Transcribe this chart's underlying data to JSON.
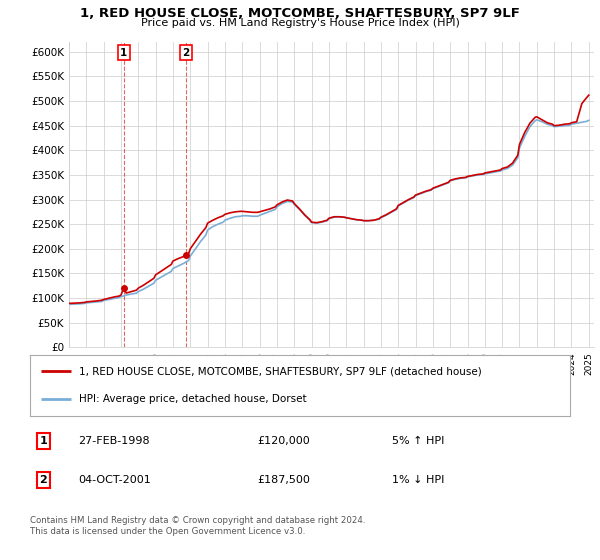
{
  "title": "1, RED HOUSE CLOSE, MOTCOMBE, SHAFTESBURY, SP7 9LF",
  "subtitle": "Price paid vs. HM Land Registry's House Price Index (HPI)",
  "ylim": [
    0,
    620000
  ],
  "yticks": [
    0,
    50000,
    100000,
    150000,
    200000,
    250000,
    300000,
    350000,
    400000,
    450000,
    500000,
    550000,
    600000
  ],
  "ytick_labels": [
    "£0",
    "£50K",
    "£100K",
    "£150K",
    "£200K",
    "£250K",
    "£300K",
    "£350K",
    "£400K",
    "£450K",
    "£500K",
    "£550K",
    "£600K"
  ],
  "hpi_color": "#7aaed6",
  "price_color": "#cc0000",
  "sale1_year": 1998.16,
  "sale1_price": 120000,
  "sale2_year": 2001.75,
  "sale2_price": 187500,
  "legend_line1": "1, RED HOUSE CLOSE, MOTCOMBE, SHAFTESBURY, SP7 9LF (detached house)",
  "legend_line2": "HPI: Average price, detached house, Dorset",
  "table_row1": [
    "1",
    "27-FEB-1998",
    "£120,000",
    "5% ↑ HPI"
  ],
  "table_row2": [
    "2",
    "04-OCT-2001",
    "£187,500",
    "1% ↓ HPI"
  ],
  "footnote": "Contains HM Land Registry data © Crown copyright and database right 2024.\nThis data is licensed under the Open Government Licence v3.0.",
  "background_color": "#ffffff",
  "grid_color": "#cccccc",
  "xlim_start": 1995,
  "xlim_end": 2025.3
}
